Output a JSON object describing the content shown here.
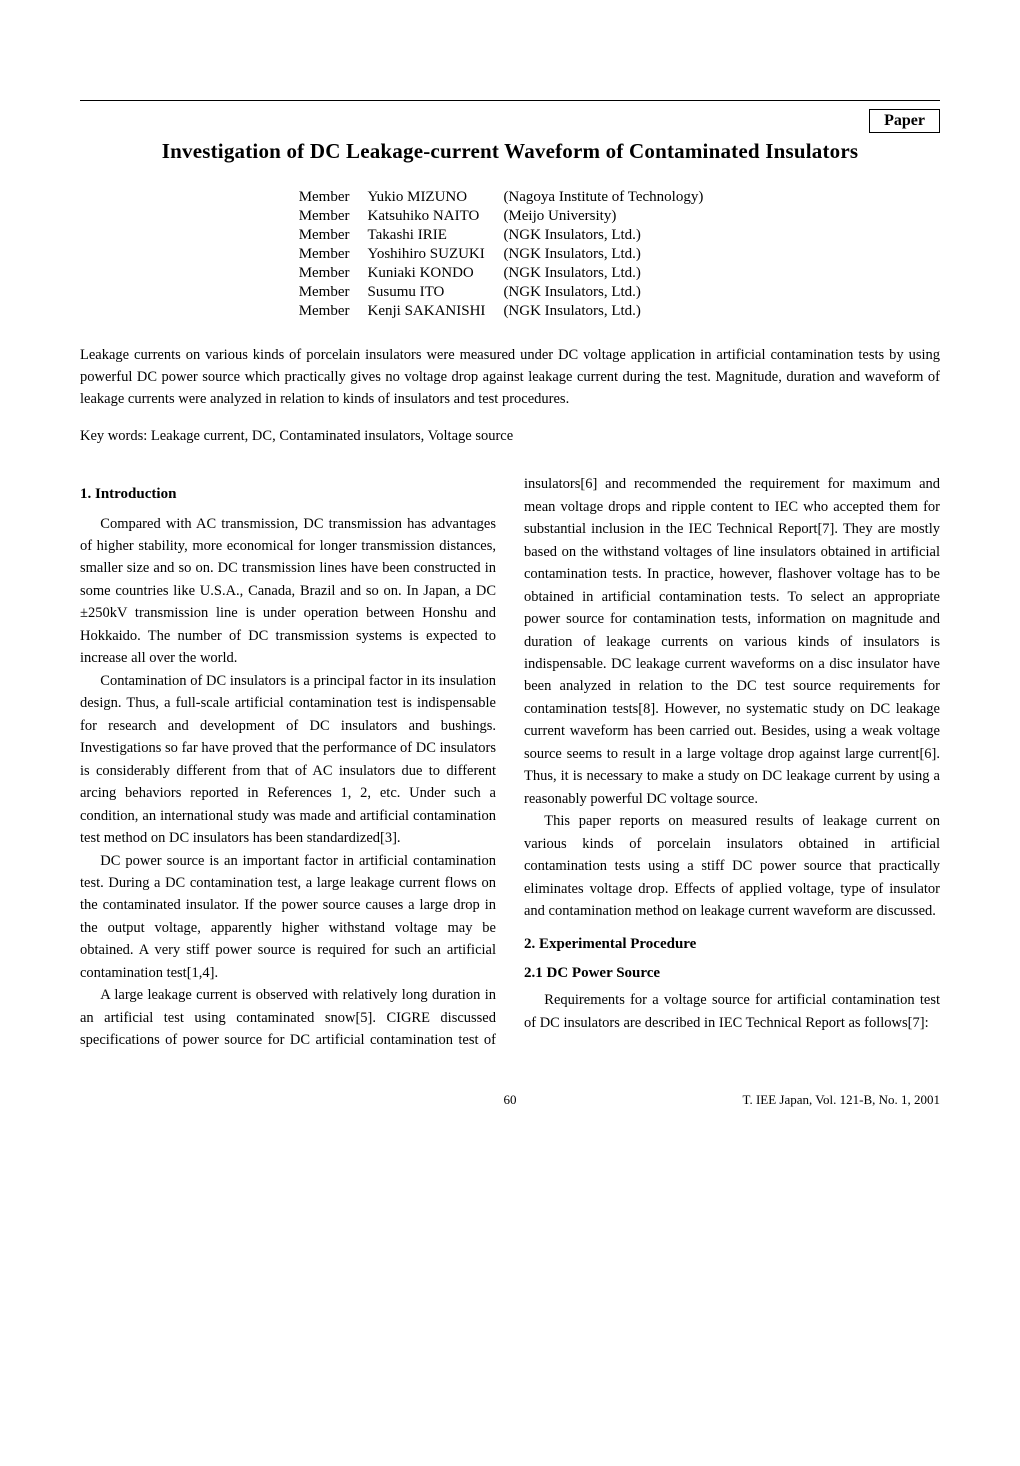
{
  "label": "Paper",
  "title": "Investigation of DC Leakage-current Waveform of Contaminated Insulators",
  "authors": [
    {
      "role": "Member",
      "name": "Yukio MIZUNO",
      "affil": "(Nagoya Institute of Technology)"
    },
    {
      "role": "Member",
      "name": "Katsuhiko NAITO",
      "affil": "(Meijo University)"
    },
    {
      "role": "Member",
      "name": "Takashi IRIE",
      "affil": "(NGK Insulators, Ltd.)"
    },
    {
      "role": "Member",
      "name": "Yoshihiro SUZUKI",
      "affil": "(NGK Insulators, Ltd.)"
    },
    {
      "role": "Member",
      "name": "Kuniaki KONDO",
      "affil": "(NGK Insulators, Ltd.)"
    },
    {
      "role": "Member",
      "name": "Susumu ITO",
      "affil": "(NGK Insulators, Ltd.)"
    },
    {
      "role": "Member",
      "name": "Kenji SAKANISHI",
      "affil": "(NGK Insulators, Ltd.)"
    }
  ],
  "abstract": "Leakage currents on various kinds of porcelain insulators were measured under DC voltage application in artificial contamination tests by using powerful DC power source which practically gives no voltage drop against leakage current during the test.   Magnitude, duration and waveform of leakage currents were analyzed in relation to kinds of insulators and test procedures.",
  "keywords_label": "Key words:",
  "keywords": "Leakage current, DC, Contaminated insulators, Voltage source",
  "sections": {
    "s1_heading": "1. Introduction",
    "s1_p1": "Compared with AC transmission, DC transmission has advantages of higher stability, more economical for longer transmission distances, smaller size and so on. DC transmission lines have been constructed in some countries like U.S.A., Canada, Brazil and so on.   In Japan, a DC ±250kV transmission line is under operation between Honshu and Hokkaido.   The number of DC transmission systems is expected to increase all over the world.",
    "s1_p2": "Contamination of DC insulators is a principal factor in its insulation design. Thus, a full-scale artificial contamination test is indispensable for research and development of DC insulators and bushings. Investigations so far have proved that the performance of DC insulators is considerably different from that of AC insulators due to different arcing behaviors reported in References 1, 2, etc. Under such a condition, an international study was made and artificial contamination test method on DC insulators has been standardized[3].",
    "s1_p3": "DC power source is an important factor in artificial contamination test.   During a DC contamination test, a large leakage current flows on the contaminated insulator. If the power source causes a large drop in the output voltage, apparently higher withstand voltage may be obtained. A very stiff power source is required for such an artificial contamination test[1,4].",
    "s1_p4": "A large leakage current is observed with relatively long duration in an artificial test using contaminated snow[5]. CIGRE discussed specifications of power source for DC artificial contamination test of insulators[6] and recommended the requirement for maximum and mean voltage drops and ripple content to IEC who accepted them for substantial inclusion in the IEC Technical Report[7]. They are mostly based on the withstand voltages of line insulators obtained in artificial contamination tests.   In practice, however, flashover voltage has to be obtained in artificial contamination tests.   To select an appropriate power source for contamination tests, information on magnitude and duration of leakage currents on various kinds of insulators is indispensable. DC leakage current waveforms on a disc insulator have been analyzed in relation to the DC test source requirements for contamination tests[8].   However, no systematic study on DC leakage current waveform has been carried out.   Besides, using a weak voltage source seems to result in a large voltage drop against large current[6].   Thus, it is necessary to make a study on DC leakage current by using a reasonably powerful DC voltage source.",
    "s1_p5": "This paper reports on measured results of leakage current on various kinds of porcelain insulators obtained in artificial contamination tests using a stiff DC power source that practically eliminates voltage drop.   Effects of applied voltage, type of insulator and contamination method on leakage current waveform are discussed.",
    "s2_heading": "2. Experimental Procedure",
    "s2_1_heading": "2.1 DC Power Source",
    "s2_1_p1": "Requirements for a voltage source for artificial contamination test of DC insulators are described in IEC Technical Report as follows[7]:"
  },
  "footer": {
    "page": "60",
    "journal": "T. IEE Japan, Vol. 121-B, No. 1, 2001"
  }
}
